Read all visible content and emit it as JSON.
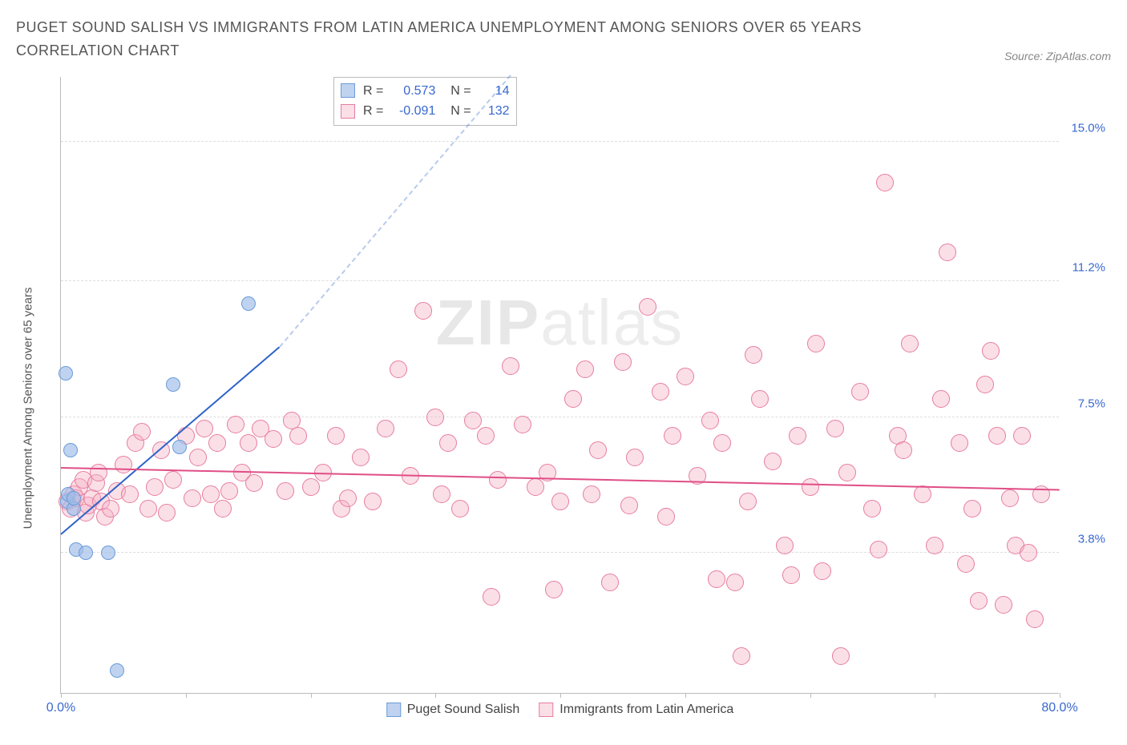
{
  "title": "PUGET SOUND SALISH VS IMMIGRANTS FROM LATIN AMERICA UNEMPLOYMENT AMONG SENIORS OVER 65 YEARS CORRELATION CHART",
  "source_label": "Source: ZipAtlas.com",
  "watermark": {
    "bold": "ZIP",
    "rest": "atlas"
  },
  "chart": {
    "type": "scatter",
    "ylabel": "Unemployment Among Seniors over 65 years",
    "xlim": [
      0,
      80
    ],
    "ylim": [
      0,
      16.8
    ],
    "x_ticks": [
      0,
      10,
      20,
      30,
      40,
      50,
      60,
      70,
      80
    ],
    "x_tick_labels": {
      "0": "0.0%",
      "80": "80.0%"
    },
    "x_label_color": "#3968d0",
    "y_gridlines": [
      3.8,
      7.5,
      11.2,
      15.0
    ],
    "y_tick_labels": [
      "3.8%",
      "7.5%",
      "11.2%",
      "15.0%"
    ],
    "y_label_color": "#3968d0",
    "background_color": "#ffffff",
    "grid_color": "#dddddd",
    "axis_color": "#bbbbbb"
  },
  "series": [
    {
      "name": "Puget Sound Salish",
      "color_fill": "#9fbde8aa",
      "color_stroke": "#6a9bd8",
      "marker_radius": 9,
      "trend": {
        "x1": 0,
        "y1": 4.3,
        "x2": 17.5,
        "y2": 9.4,
        "color": "#2e63c9",
        "dash_extend_to": [
          36,
          16.8
        ]
      },
      "stats": {
        "R": "0.573",
        "N": "14"
      },
      "points": [
        [
          0.4,
          8.7
        ],
        [
          0.5,
          5.2
        ],
        [
          0.6,
          5.4
        ],
        [
          0.8,
          6.6
        ],
        [
          1.0,
          5.0
        ],
        [
          1.0,
          5.3
        ],
        [
          1.2,
          3.9
        ],
        [
          2.0,
          3.8
        ],
        [
          3.8,
          3.8
        ],
        [
          4.5,
          0.6
        ],
        [
          9.0,
          8.4
        ],
        [
          9.5,
          6.7
        ],
        [
          15.0,
          10.6
        ]
      ]
    },
    {
      "name": "Immigrants from Latin America",
      "color_fill": "#f5b0c366",
      "color_stroke": "#e77da0",
      "marker_radius": 11,
      "trend": {
        "x1": 0,
        "y1": 6.1,
        "x2": 80,
        "y2": 5.5,
        "color": "#e04e86"
      },
      "stats": {
        "R": "-0.091",
        "N": "132"
      },
      "points": [
        [
          0.5,
          5.2
        ],
        [
          0.8,
          5.0
        ],
        [
          1.0,
          5.4
        ],
        [
          1.2,
          5.3
        ],
        [
          1.5,
          5.6
        ],
        [
          1.8,
          5.8
        ],
        [
          2.0,
          4.9
        ],
        [
          2.2,
          5.1
        ],
        [
          2.5,
          5.3
        ],
        [
          2.8,
          5.7
        ],
        [
          3.0,
          6.0
        ],
        [
          3.2,
          5.2
        ],
        [
          3.5,
          4.8
        ],
        [
          4.0,
          5.0
        ],
        [
          4.5,
          5.5
        ],
        [
          5.0,
          6.2
        ],
        [
          5.5,
          5.4
        ],
        [
          6.0,
          6.8
        ],
        [
          6.5,
          7.1
        ],
        [
          7.0,
          5.0
        ],
        [
          7.5,
          5.6
        ],
        [
          8.0,
          6.6
        ],
        [
          8.5,
          4.9
        ],
        [
          9.0,
          5.8
        ],
        [
          10.0,
          7.0
        ],
        [
          10.5,
          5.3
        ],
        [
          11.0,
          6.4
        ],
        [
          11.5,
          7.2
        ],
        [
          12.0,
          5.4
        ],
        [
          12.5,
          6.8
        ],
        [
          13.0,
          5.0
        ],
        [
          13.5,
          5.5
        ],
        [
          14.0,
          7.3
        ],
        [
          14.5,
          6.0
        ],
        [
          15.0,
          6.8
        ],
        [
          15.5,
          5.7
        ],
        [
          16.0,
          7.2
        ],
        [
          17.0,
          6.9
        ],
        [
          18.0,
          5.5
        ],
        [
          18.5,
          7.4
        ],
        [
          19.0,
          7.0
        ],
        [
          20.0,
          5.6
        ],
        [
          21.0,
          6.0
        ],
        [
          22.0,
          7.0
        ],
        [
          22.5,
          5.0
        ],
        [
          23.0,
          5.3
        ],
        [
          24.0,
          6.4
        ],
        [
          25.0,
          5.2
        ],
        [
          26.0,
          7.2
        ],
        [
          27.0,
          8.8
        ],
        [
          28.0,
          5.9
        ],
        [
          29.0,
          10.4
        ],
        [
          30.0,
          7.5
        ],
        [
          30.5,
          5.4
        ],
        [
          31.0,
          6.8
        ],
        [
          32.0,
          5.0
        ],
        [
          33.0,
          7.4
        ],
        [
          34.0,
          7.0
        ],
        [
          34.5,
          2.6
        ],
        [
          35.0,
          5.8
        ],
        [
          36.0,
          8.9
        ],
        [
          37.0,
          7.3
        ],
        [
          38.0,
          5.6
        ],
        [
          39.0,
          6.0
        ],
        [
          39.5,
          2.8
        ],
        [
          40.0,
          5.2
        ],
        [
          41.0,
          8.0
        ],
        [
          42.0,
          8.8
        ],
        [
          42.5,
          5.4
        ],
        [
          43.0,
          6.6
        ],
        [
          44.0,
          3.0
        ],
        [
          45.0,
          9.0
        ],
        [
          45.5,
          5.1
        ],
        [
          46.0,
          6.4
        ],
        [
          47.0,
          10.5
        ],
        [
          48.0,
          8.2
        ],
        [
          48.5,
          4.8
        ],
        [
          49.0,
          7.0
        ],
        [
          50.0,
          8.6
        ],
        [
          51.0,
          5.9
        ],
        [
          52.0,
          7.4
        ],
        [
          52.5,
          3.1
        ],
        [
          53.0,
          6.8
        ],
        [
          54.0,
          3.0
        ],
        [
          54.5,
          1.0
        ],
        [
          55.0,
          5.2
        ],
        [
          55.5,
          9.2
        ],
        [
          56.0,
          8.0
        ],
        [
          57.0,
          6.3
        ],
        [
          58.0,
          4.0
        ],
        [
          58.5,
          3.2
        ],
        [
          59.0,
          7.0
        ],
        [
          60.0,
          5.6
        ],
        [
          60.5,
          9.5
        ],
        [
          61.0,
          3.3
        ],
        [
          62.0,
          7.2
        ],
        [
          62.5,
          1.0
        ],
        [
          63.0,
          6.0
        ],
        [
          64.0,
          8.2
        ],
        [
          65.0,
          5.0
        ],
        [
          65.5,
          3.9
        ],
        [
          66.0,
          13.9
        ],
        [
          67.0,
          7.0
        ],
        [
          67.5,
          6.6
        ],
        [
          68.0,
          9.5
        ],
        [
          69.0,
          5.4
        ],
        [
          70.0,
          4.0
        ],
        [
          70.5,
          8.0
        ],
        [
          71.0,
          12.0
        ],
        [
          72.0,
          6.8
        ],
        [
          72.5,
          3.5
        ],
        [
          73.0,
          5.0
        ],
        [
          73.5,
          2.5
        ],
        [
          74.0,
          8.4
        ],
        [
          74.5,
          9.3
        ],
        [
          75.0,
          7.0
        ],
        [
          75.5,
          2.4
        ],
        [
          76.0,
          5.3
        ],
        [
          76.5,
          4.0
        ],
        [
          77.0,
          7.0
        ],
        [
          77.5,
          3.8
        ],
        [
          78.0,
          2.0
        ],
        [
          78.5,
          5.4
        ]
      ]
    }
  ],
  "legend": [
    {
      "label": "Puget Sound Salish",
      "fill": "#9fbde8aa",
      "stroke": "#6a9bd8"
    },
    {
      "label": "Immigrants from Latin America",
      "fill": "#f5b0c366",
      "stroke": "#e77da0"
    }
  ],
  "stats_box": {
    "rows": [
      {
        "swatch_fill": "#9fbde8aa",
        "swatch_stroke": "#6a9bd8",
        "R": "0.573",
        "N": "14"
      },
      {
        "swatch_fill": "#f5b0c366",
        "swatch_stroke": "#e77da0",
        "R": "-0.091",
        "N": "132"
      }
    ]
  }
}
